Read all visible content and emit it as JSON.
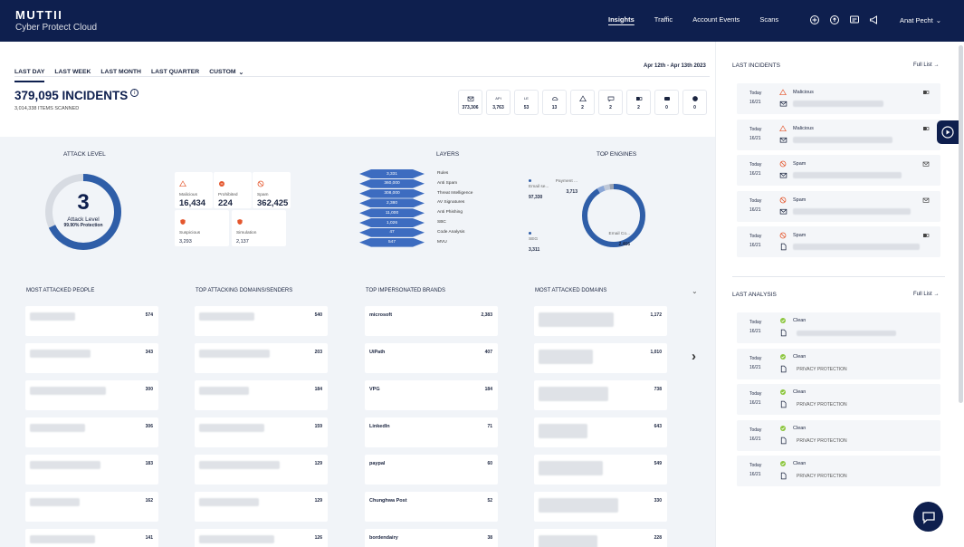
{
  "brand": {
    "name": "MUTTII",
    "sub": "Cyber Protect Cloud"
  },
  "nav": {
    "links": [
      "Insights",
      "Traffic",
      "Account Events",
      "Scans"
    ],
    "active": 0,
    "user": "Anat Pecht"
  },
  "filters": {
    "items": [
      "LAST DAY",
      "LAST WEEK",
      "LAST MONTH",
      "LAST QUARTER"
    ],
    "custom": "CUSTOM",
    "active": 0,
    "date_range": "Apr 12th - Apr 13th 2023"
  },
  "summary": {
    "incidents": "379,095 INCIDENTS",
    "scanned": "3,014,338 ITEMS SCANNED",
    "info": "i"
  },
  "stat_icons": [
    {
      "icon": "mail-icon",
      "label": "",
      "value": "373,306"
    },
    {
      "icon": "api-icon",
      "label": "API",
      "value": "3,763"
    },
    {
      "icon": "badge-icon",
      "label": "LE",
      "value": "53"
    },
    {
      "icon": "cloud-icon",
      "label": "",
      "value": "13"
    },
    {
      "icon": "warning-icon",
      "label": "",
      "value": "2"
    },
    {
      "icon": "chat-icon",
      "label": "",
      "value": "2"
    },
    {
      "icon": "teams-icon",
      "label": "",
      "value": "2"
    },
    {
      "icon": "drive-icon",
      "label": "",
      "value": "0"
    },
    {
      "icon": "globe-icon",
      "label": "",
      "value": "0"
    }
  ],
  "attack_level": {
    "title": "ATTACK LEVEL",
    "value": "3",
    "label": "Attack Level",
    "protection": "99.90% Protection",
    "fraction": 0.68,
    "color": "#2f5ea8"
  },
  "categories": [
    {
      "label": "Malicious",
      "value": "16,434",
      "icon": "warning-icon",
      "color": "#e4572e"
    },
    {
      "label": "Prohibited",
      "value": "224",
      "icon": "block-icon",
      "color": "#e4572e"
    },
    {
      "label": "Spam",
      "value": "362,425",
      "icon": "spam-icon",
      "color": "#e4572e"
    },
    {
      "label": "Suspicious",
      "value": "3,293",
      "icon": "shield-icon",
      "color": "#e4572e"
    },
    {
      "label": "Simulation",
      "value": "2,137",
      "icon": "shield-icon",
      "color": "#e4572e"
    }
  ],
  "layers": {
    "title": "LAYERS",
    "rows": [
      {
        "value": "3,331",
        "label": "Rules"
      },
      {
        "value": "360,000",
        "label": "Anti Spam"
      },
      {
        "value": "308,000",
        "label": "Threat Intelligence"
      },
      {
        "value": "2,380",
        "label": "AV Signatures"
      },
      {
        "value": "11,000",
        "label": "Anti Phishing"
      },
      {
        "value": "1,026",
        "label": "SBC"
      },
      {
        "value": "47",
        "label": "Code Analysis"
      },
      {
        "value": "547",
        "label": "MVU"
      }
    ]
  },
  "top_engines": {
    "title": "TOP ENGINES",
    "labels": [
      {
        "name": "Email se...",
        "value": "97,330"
      },
      {
        "name": "Payment ...",
        "value": "3,713"
      },
      {
        "name": "SEG",
        "value": "3,311"
      },
      {
        "name": "Email Co...",
        "value": "2,466"
      }
    ],
    "chart_data": {
      "type": "pie",
      "slices": [
        {
          "label": "Email se...",
          "value": 97330
        },
        {
          "label": "Payment ...",
          "value": 3713
        },
        {
          "label": "SEG",
          "value": 3311
        },
        {
          "label": "Email Co...",
          "value": 2466
        }
      ]
    }
  },
  "lists": [
    {
      "title": "MOST ATTACKED PEOPLE",
      "rows": [
        {
          "name": "",
          "value": "574"
        },
        {
          "name": "",
          "value": "343"
        },
        {
          "name": "",
          "value": "300"
        },
        {
          "name": "",
          "value": "306"
        },
        {
          "name": "",
          "value": "183"
        },
        {
          "name": "",
          "value": "162"
        },
        {
          "name": "",
          "value": "141"
        }
      ]
    },
    {
      "title": "TOP ATTACKING DOMAINS/SENDERS",
      "rows": [
        {
          "name": "",
          "value": "540"
        },
        {
          "name": "",
          "value": "203"
        },
        {
          "name": "",
          "value": "184"
        },
        {
          "name": "",
          "value": "159"
        },
        {
          "name": "",
          "value": "129"
        },
        {
          "name": "",
          "value": "129"
        },
        {
          "name": "",
          "value": "126"
        }
      ]
    },
    {
      "title": "TOP IMPERSONATED BRANDS",
      "rows": [
        {
          "name": "microsoft",
          "value": "2,383"
        },
        {
          "name": "UiPath",
          "value": "407"
        },
        {
          "name": "VPG",
          "value": "184"
        },
        {
          "name": "LinkedIn",
          "value": "71"
        },
        {
          "name": "paypal",
          "value": "60"
        },
        {
          "name": "Chunghwa Post",
          "value": "52"
        },
        {
          "name": "bordendairy",
          "value": "38"
        }
      ]
    },
    {
      "title": "MOST ATTACKED DOMAINS",
      "rows": [
        {
          "name": "",
          "value": "1,172"
        },
        {
          "name": "",
          "value": "1,010"
        },
        {
          "name": "",
          "value": "738"
        },
        {
          "name": "",
          "value": "643"
        },
        {
          "name": "",
          "value": "549"
        },
        {
          "name": "",
          "value": "330"
        },
        {
          "name": "",
          "value": "228"
        }
      ]
    }
  ],
  "last_incidents": {
    "title": "LAST INCIDENTS",
    "full": "Full List",
    "rows": [
      {
        "day": "Today",
        "date": "16/21",
        "status": "Malicious",
        "kind": "malicious",
        "ch": "teams-icon"
      },
      {
        "day": "Today",
        "date": "16/21",
        "status": "Malicious",
        "kind": "malicious",
        "ch": "teams-icon"
      },
      {
        "day": "Today",
        "date": "16/21",
        "status": "Spam",
        "kind": "spam",
        "ch": "mail-icon"
      },
      {
        "day": "Today",
        "date": "16/21",
        "status": "Spam",
        "kind": "spam",
        "ch": "mail-icon"
      },
      {
        "day": "Today",
        "date": "16/21",
        "status": "Spam",
        "kind": "spam",
        "ch": "teams-icon"
      }
    ]
  },
  "last_analysis": {
    "title": "LAST ANALYSIS",
    "full": "Full List",
    "rows": [
      {
        "day": "Today",
        "date": "16/21",
        "status": "Clean",
        "desc": ""
      },
      {
        "day": "Today",
        "date": "16/21",
        "status": "Clean",
        "desc": "PRIVACY PROTECTION"
      },
      {
        "day": "Today",
        "date": "16/21",
        "status": "Clean",
        "desc": "PRIVACY PROTECTION"
      },
      {
        "day": "Today",
        "date": "16/21",
        "status": "Clean",
        "desc": "PRIVACY PROTECTION"
      },
      {
        "day": "Today",
        "date": "16/21",
        "status": "Clean",
        "desc": "PRIVACY PROTECTION"
      }
    ]
  },
  "colors": {
    "navy": "#0e1f4e",
    "accent": "#2f5ea8",
    "danger": "#e4572e",
    "ok": "#8cc63f",
    "panel": "#f1f4f8"
  }
}
